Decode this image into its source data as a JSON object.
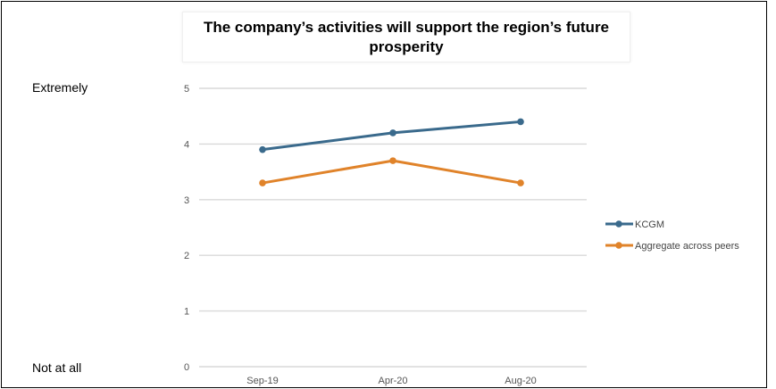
{
  "chart_data": {
    "type": "line",
    "title": "The company’s activities will support the region’s future prosperity",
    "categories": [
      "Sep-19",
      "Apr-20",
      "Aug-20"
    ],
    "series": [
      {
        "name": "KCGM",
        "values": [
          3.9,
          4.2,
          4.4
        ],
        "color": "#3a6a8c"
      },
      {
        "name": "Aggregate across peers",
        "values": [
          3.3,
          3.7,
          3.3
        ],
        "color": "#e0832a"
      }
    ],
    "ylim": [
      0,
      5
    ],
    "yticks": [
      "0",
      "1",
      "2",
      "3",
      "4",
      "5"
    ],
    "grid": true,
    "gridline_color": "#d9d9d9",
    "legend_position": "right",
    "scale_labels": {
      "top": "Extremely",
      "bottom": "Not at all"
    }
  }
}
